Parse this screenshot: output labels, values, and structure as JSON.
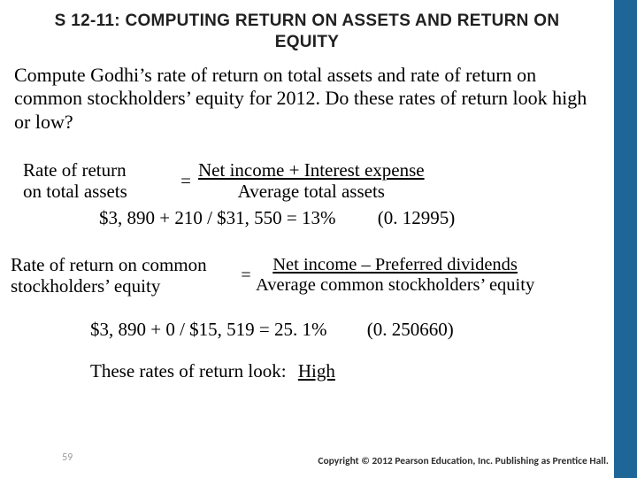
{
  "colors": {
    "stripe": "#1f6698",
    "background": "#ffffff",
    "title_text": "#202020",
    "body_text": "#000000",
    "slidenum": "#9c9c9c"
  },
  "title": "S 12-11: COMPUTING RETURN ON ASSETS AND RETURN ON EQUITY",
  "prompt": "Compute Godhi’s rate of return on total assets and rate of return on common stockholders’ equity for 2012. Do these rates of return look high or low?",
  "formula1": {
    "lhs_line1": "Rate of return",
    "lhs_line2": "on total assets",
    "equals": "=",
    "numerator": "Net income + Interest expense",
    "denominator": "Average total assets",
    "calc": "$3, 890 + 210 /  $31, 550  =  13%",
    "paren": "(0. 12995)"
  },
  "formula2": {
    "lhs_line1": "Rate of return on common",
    "lhs_line2": "stockholders’ equity",
    "equals": "=",
    "numerator": "Net income – Preferred dividends",
    "denominator": "Average common stockholders’ equity",
    "calc": "$3, 890 + 0 /  $15, 519  =  25. 1%",
    "paren": "(0. 250660)"
  },
  "conclusion": {
    "text": "These rates of return look:",
    "answer": "High"
  },
  "slide_number": "59",
  "copyright": "Copyright © 2012 Pearson Education, Inc. Publishing as Prentice Hall."
}
